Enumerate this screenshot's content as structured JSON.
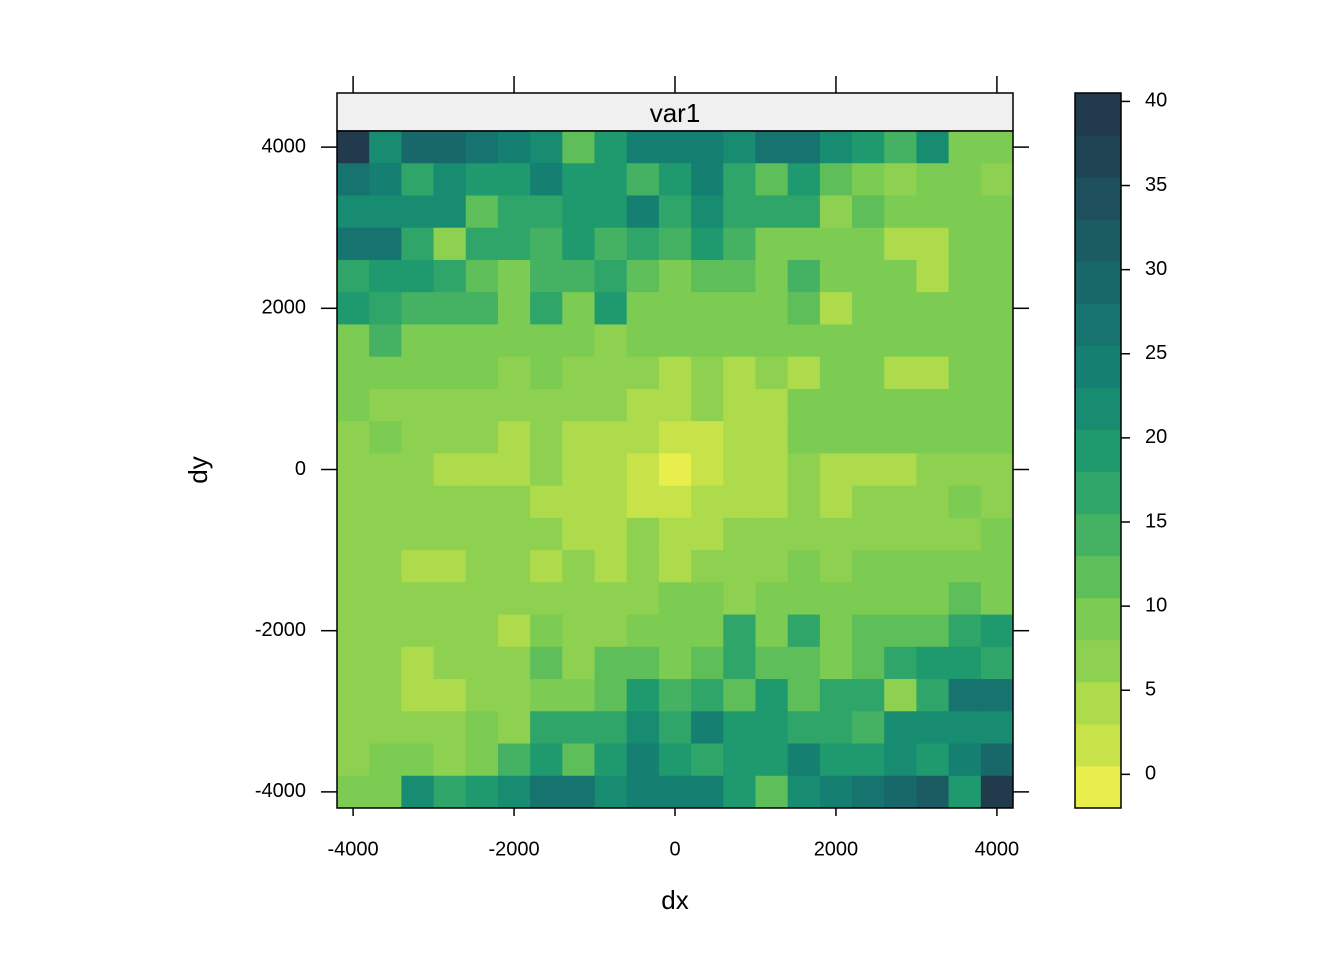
{
  "chart_data": {
    "type": "heatmap",
    "title": "var1",
    "x_label": "dx",
    "y_label": "dy",
    "x": [
      -4000,
      -3600,
      -3200,
      -2800,
      -2400,
      -2000,
      -1600,
      -1200,
      -800,
      -400,
      0,
      400,
      800,
      1200,
      1600,
      2000,
      2400,
      2800,
      3200,
      3600,
      4000
    ],
    "y": [
      4000,
      3600,
      3200,
      2800,
      2400,
      2000,
      1600,
      1200,
      800,
      400,
      0,
      -400,
      -800,
      -1200,
      -1600,
      -2000,
      -2400,
      -2800,
      -3200,
      -3600,
      -4000
    ],
    "z": [
      [
        39,
        22,
        29,
        29,
        27,
        24,
        22,
        12,
        19,
        24,
        24,
        24,
        22,
        27,
        27,
        22,
        19,
        14,
        22,
        9,
        9
      ],
      [
        27,
        24,
        17,
        22,
        19,
        19,
        24,
        19,
        19,
        14,
        19,
        24,
        17,
        12,
        19,
        12,
        9,
        7,
        9,
        9,
        7
      ],
      [
        22,
        22,
        22,
        22,
        12,
        17,
        17,
        19,
        19,
        24,
        17,
        22,
        17,
        17,
        17,
        7,
        12,
        9,
        9,
        9,
        9
      ],
      [
        27,
        27,
        17,
        7,
        17,
        17,
        14,
        19,
        14,
        17,
        14,
        19,
        14,
        9,
        9,
        9,
        9,
        4,
        4,
        9,
        9
      ],
      [
        17,
        19,
        19,
        17,
        12,
        9,
        14,
        14,
        17,
        12,
        9,
        12,
        12,
        9,
        14,
        9,
        9,
        9,
        4,
        9,
        9
      ],
      [
        19,
        17,
        14,
        14,
        14,
        9,
        17,
        9,
        19,
        9,
        9,
        9,
        9,
        9,
        12,
        4,
        9,
        9,
        9,
        9,
        9
      ],
      [
        9,
        14,
        9,
        9,
        9,
        9,
        9,
        9,
        7,
        9,
        9,
        9,
        9,
        9,
        9,
        9,
        9,
        9,
        9,
        9,
        9
      ],
      [
        9,
        9,
        9,
        9,
        9,
        7,
        9,
        7,
        7,
        7,
        4,
        7,
        4,
        7,
        4,
        9,
        9,
        4,
        4,
        9,
        9
      ],
      [
        9,
        7,
        7,
        7,
        7,
        7,
        7,
        7,
        7,
        4,
        4,
        7,
        4,
        4,
        9,
        9,
        9,
        9,
        9,
        9,
        9
      ],
      [
        7,
        9,
        7,
        7,
        7,
        4,
        7,
        4,
        4,
        4,
        2,
        2,
        4,
        4,
        9,
        9,
        9,
        9,
        9,
        9,
        9
      ],
      [
        7,
        7,
        7,
        4,
        4,
        4,
        7,
        4,
        4,
        2,
        -1,
        2,
        4,
        4,
        7,
        4,
        4,
        4,
        7,
        7,
        7
      ],
      [
        7,
        7,
        7,
        7,
        7,
        7,
        4,
        4,
        4,
        2,
        2,
        4,
        4,
        4,
        7,
        4,
        7,
        7,
        7,
        9,
        7
      ],
      [
        7,
        7,
        7,
        7,
        7,
        7,
        7,
        4,
        4,
        7,
        4,
        4,
        7,
        7,
        7,
        7,
        7,
        7,
        7,
        7,
        9
      ],
      [
        7,
        7,
        4,
        4,
        7,
        7,
        4,
        7,
        4,
        7,
        4,
        7,
        7,
        7,
        9,
        7,
        9,
        9,
        9,
        9,
        9
      ],
      [
        7,
        7,
        7,
        7,
        7,
        7,
        7,
        7,
        7,
        7,
        9,
        9,
        7,
        9,
        9,
        9,
        9,
        9,
        9,
        12,
        9
      ],
      [
        7,
        7,
        7,
        7,
        7,
        4,
        9,
        7,
        7,
        9,
        9,
        9,
        17,
        9,
        17,
        9,
        12,
        12,
        12,
        17,
        19
      ],
      [
        7,
        7,
        4,
        7,
        7,
        7,
        12,
        7,
        12,
        12,
        9,
        12,
        17,
        12,
        12,
        9,
        12,
        17,
        19,
        19,
        17
      ],
      [
        7,
        7,
        4,
        4,
        7,
        7,
        9,
        9,
        12,
        19,
        14,
        17,
        12,
        19,
        12,
        17,
        17,
        7,
        17,
        27,
        27
      ],
      [
        7,
        7,
        7,
        7,
        9,
        7,
        17,
        17,
        17,
        22,
        17,
        24,
        19,
        19,
        17,
        17,
        14,
        22,
        22,
        22,
        22
      ],
      [
        7,
        9,
        9,
        7,
        9,
        14,
        19,
        12,
        19,
        24,
        19,
        17,
        19,
        19,
        24,
        19,
        19,
        22,
        19,
        24,
        29
      ],
      [
        9,
        9,
        22,
        17,
        19,
        22,
        27,
        27,
        22,
        24,
        24,
        24,
        19,
        12,
        22,
        24,
        27,
        29,
        32,
        19,
        39
      ]
    ],
    "xlim": [
      -4200,
      4200
    ],
    "ylim": [
      -4200,
      4200
    ],
    "xticks": [
      -4000,
      -2000,
      0,
      2000,
      4000
    ],
    "yticks": [
      -4000,
      -2000,
      0,
      2000,
      4000
    ],
    "colorbar": {
      "clim": [
        -2,
        40.5
      ],
      "ticks": [
        0,
        5,
        10,
        15,
        20,
        25,
        30,
        35,
        40
      ],
      "colors": [
        "#e8ee4b",
        "#c8e24a",
        "#aedb4c",
        "#8ed150",
        "#7ccb52",
        "#5dbe5a",
        "#45b163",
        "#2fa56a",
        "#1f996e",
        "#178c70",
        "#157f71",
        "#17736e",
        "#196869",
        "#1b5c63",
        "#1d505c",
        "#1f4554",
        "#213a4c"
      ]
    }
  }
}
